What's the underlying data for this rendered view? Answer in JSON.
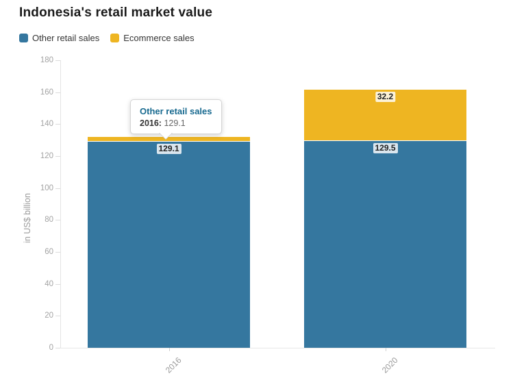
{
  "title": "Indonesia's retail market value",
  "legend": [
    {
      "label": "Other retail sales",
      "color": "#35779f"
    },
    {
      "label": "Ecommerce sales",
      "color": "#eeb522"
    }
  ],
  "y_axis": {
    "label": "in US$ billion"
  },
  "tooltip": {
    "series_label": "Other retail sales",
    "category_label": "2016:",
    "value": "129.1"
  },
  "chart_data": {
    "type": "bar",
    "stacked": true,
    "title": "Indonesia's retail market value",
    "xlabel": "",
    "ylabel": "in US$ billion",
    "ylim": [
      0,
      180
    ],
    "yticks": [
      0,
      20,
      40,
      60,
      80,
      100,
      120,
      140,
      160,
      180
    ],
    "grid": false,
    "legend_position": "top-left",
    "categories": [
      "2016",
      "2020"
    ],
    "series": [
      {
        "name": "Other retail sales",
        "color": "#35779f",
        "values": [
          129.1,
          129.5
        ]
      },
      {
        "name": "Ecommerce sales",
        "color": "#eeb522",
        "values": [
          3,
          32.2
        ]
      }
    ],
    "value_labels": [
      {
        "category_index": 0,
        "series_index": 0,
        "text": "129.1"
      },
      {
        "category_index": 1,
        "series_index": 0,
        "text": "129.5"
      },
      {
        "category_index": 1,
        "series_index": 1,
        "text": "32.2"
      }
    ]
  }
}
